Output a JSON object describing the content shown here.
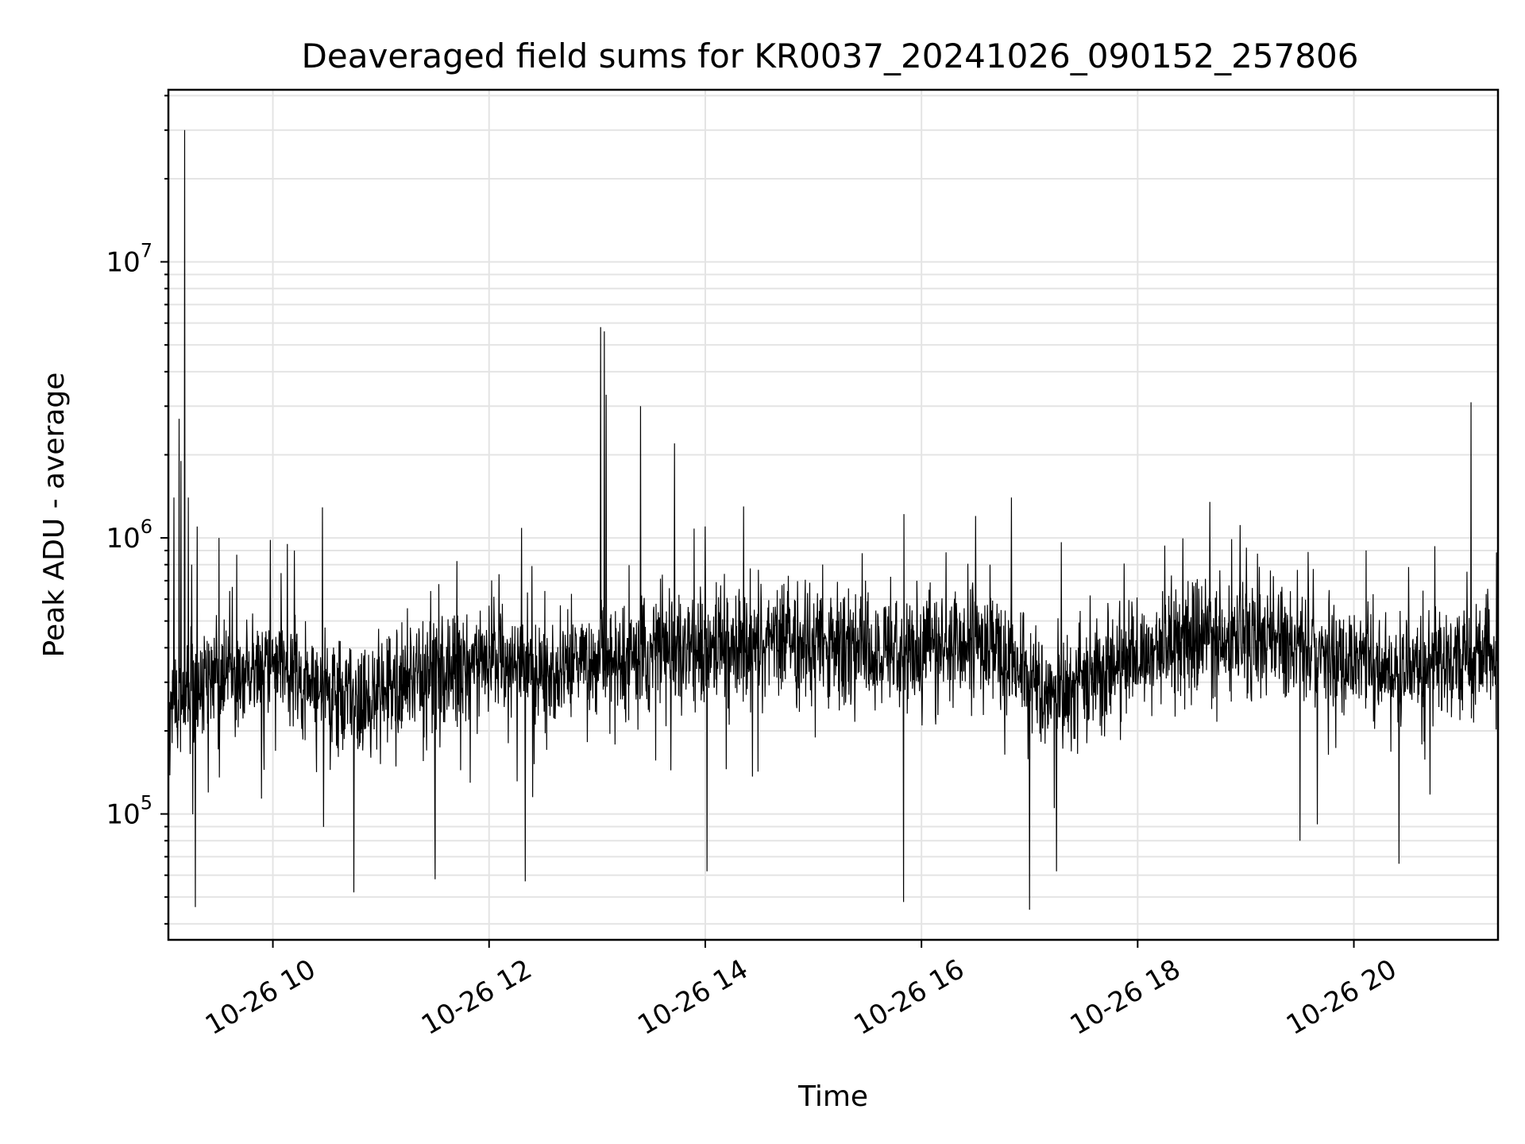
{
  "chart_data": {
    "type": "line",
    "title": "Deaveraged field sums for KR0037_20241026_090152_257806",
    "xlabel": "Time",
    "ylabel": "Peak ADU - average",
    "yscale": "log",
    "ylim": [
      35000,
      42000000
    ],
    "xlim": [
      "2024-10-26 09:02",
      "2024-10-26 21:20"
    ],
    "grid": true,
    "line_color": "#000000",
    "x_ticks": [
      {
        "value": "2024-10-26 10:00",
        "label": "10-26 10"
      },
      {
        "value": "2024-10-26 12:00",
        "label": "10-26 12"
      },
      {
        "value": "2024-10-26 14:00",
        "label": "10-26 14"
      },
      {
        "value": "2024-10-26 16:00",
        "label": "10-26 16"
      },
      {
        "value": "2024-10-26 18:00",
        "label": "10-26 18"
      },
      {
        "value": "2024-10-26 20:00",
        "label": "10-26 20"
      }
    ],
    "y_ticks": [
      {
        "value": 100000,
        "base": "10",
        "exp": "5"
      },
      {
        "value": 1000000,
        "base": "10",
        "exp": "6"
      },
      {
        "value": 10000000,
        "base": "10",
        "exp": "7"
      }
    ],
    "baseline": {
      "x": [
        "2024-10-26 09:02",
        "2024-10-26 09:30",
        "2024-10-26 10:00",
        "2024-10-26 10:40",
        "2024-10-26 11:20",
        "2024-10-26 12:00",
        "2024-10-26 12:40",
        "2024-10-26 13:20",
        "2024-10-26 14:00",
        "2024-10-26 14:40",
        "2024-10-26 15:20",
        "2024-10-26 16:00",
        "2024-10-26 16:40",
        "2024-10-26 17:10",
        "2024-10-26 17:40",
        "2024-10-26 18:20",
        "2024-10-26 19:00",
        "2024-10-26 19:40",
        "2024-10-26 20:20",
        "2024-10-26 21:00",
        "2024-10-26 21:20"
      ],
      "y": [
        260000,
        300000,
        330000,
        260000,
        320000,
        360000,
        330000,
        380000,
        400000,
        420000,
        400000,
        380000,
        430000,
        270000,
        320000,
        420000,
        450000,
        380000,
        330000,
        360000,
        380000
      ]
    },
    "spikes": {
      "x": [
        "2024-10-26 09:05",
        "2024-10-26 09:08",
        "2024-10-26 09:09",
        "2024-10-26 09:11",
        "2024-10-26 09:13",
        "2024-10-26 09:15",
        "2024-10-26 09:18",
        "2024-10-26 09:30",
        "2024-10-26 10:08",
        "2024-10-26 10:12",
        "2024-10-26 13:02",
        "2024-10-26 13:04",
        "2024-10-26 13:05",
        "2024-10-26 13:24",
        "2024-10-26 13:43",
        "2024-10-26 14:00",
        "2024-10-26 16:30",
        "2024-10-26 16:50",
        "2024-10-26 18:40",
        "2024-10-26 21:05"
      ],
      "y": [
        1400000,
        2700000,
        1900000,
        30000000,
        1400000,
        800000,
        1100000,
        1000000,
        950000,
        900000,
        5800000,
        5600000,
        3300000,
        3000000,
        2200000,
        1100000,
        1200000,
        1400000,
        1350000,
        3100000
      ]
    },
    "dips": {
      "x": [
        "2024-10-26 09:13",
        "2024-10-26 09:17",
        "2024-10-26 10:45",
        "2024-10-26 11:30",
        "2024-10-26 12:20",
        "2024-10-26 14:01",
        "2024-10-26 15:50",
        "2024-10-26 17:00",
        "2024-10-26 17:15",
        "2024-10-26 19:30",
        "2024-10-26 20:25"
      ],
      "y": [
        55000,
        46000,
        52000,
        58000,
        57000,
        62000,
        48000,
        45000,
        62000,
        80000,
        66000
      ]
    }
  }
}
